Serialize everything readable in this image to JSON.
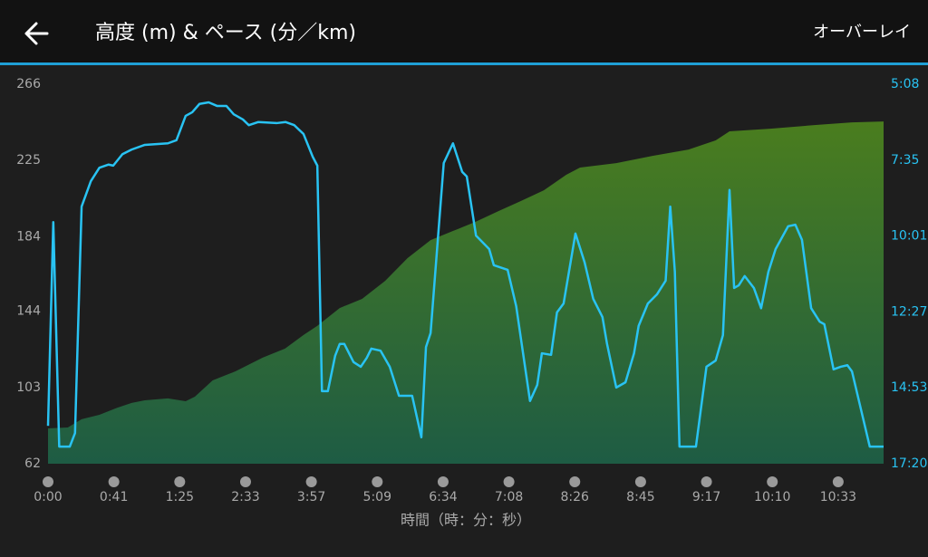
{
  "header": {
    "overlay_button": "オーバーレイ"
  },
  "chart_data": {
    "type": "combo",
    "title": "高度 (m) & ペース (分／km)",
    "xlabel": "時間（時：分：秒）",
    "xlim": [
      0,
      12.69
    ],
    "xticks": [
      {
        "value": 0,
        "label": "0:00"
      },
      {
        "value": 1,
        "label": "0:41"
      },
      {
        "value": 2,
        "label": "1:25"
      },
      {
        "value": 3,
        "label": "2:33"
      },
      {
        "value": 4,
        "label": "3:57"
      },
      {
        "value": 5,
        "label": "5:09"
      },
      {
        "value": 6,
        "label": "6:34"
      },
      {
        "value": 7,
        "label": "7:08"
      },
      {
        "value": 8,
        "label": "8:26"
      },
      {
        "value": 9,
        "label": "8:45"
      },
      {
        "value": 10,
        "label": "9:17"
      },
      {
        "value": 11,
        "label": "10:10"
      },
      {
        "value": 12,
        "label": "10:33"
      }
    ],
    "ylim": [
      62,
      266
    ],
    "yticks": [
      266,
      225,
      184,
      144,
      103,
      62
    ],
    "y2lim": [
      308,
      1040
    ],
    "y2_inverted": true,
    "y2ticks": [
      {
        "value": 308,
        "label": "5:08"
      },
      {
        "value": 455,
        "label": "7:35"
      },
      {
        "value": 601,
        "label": "10:01"
      },
      {
        "value": 747,
        "label": "12:27"
      },
      {
        "value": 893,
        "label": "14:53"
      },
      {
        "value": 1040,
        "label": "17:20"
      }
    ],
    "grid": false,
    "series": [
      {
        "type": "area",
        "color": "#4a7d1e",
        "color_bottom": "#1e5c44",
        "x": [
          0,
          0.3,
          0.51,
          0.78,
          1.06,
          1.27,
          1.47,
          1.82,
          2.09,
          2.23,
          2.5,
          2.85,
          3.26,
          3.6,
          3.88,
          4.09,
          4.43,
          4.77,
          5.12,
          5.46,
          5.81,
          6.15,
          6.49,
          6.84,
          7.18,
          7.53,
          7.87,
          8.08,
          8.63,
          9.18,
          9.73,
          10.14,
          10.35,
          10.97,
          11.66,
          12.21,
          12.69
        ],
        "values": [
          81.0,
          81.5,
          85.9,
          88.3,
          92.2,
          94.7,
          96.1,
          97.1,
          95.6,
          98.0,
          106.8,
          111.7,
          119.0,
          123.9,
          131.2,
          136.1,
          145.7,
          150.6,
          160.3,
          172.5,
          182.2,
          187.1,
          192.0,
          197.8,
          203.2,
          209.0,
          217.3,
          221.2,
          223.6,
          227.5,
          230.9,
          235.8,
          240.7,
          242.1,
          244.1,
          245.5,
          246.0
        ]
      },
      {
        "type": "line",
        "axis": "y2",
        "color": "#29c3f3",
        "x": [
          0,
          0.08,
          0.17,
          0.33,
          0.41,
          0.51,
          0.65,
          0.78,
          0.92,
          0.99,
          1.13,
          1.27,
          1.47,
          1.82,
          1.95,
          2.09,
          2.19,
          2.3,
          2.44,
          2.57,
          2.71,
          2.82,
          2.96,
          3.05,
          3.19,
          3.47,
          3.61,
          3.74,
          3.88,
          4.02,
          4.09,
          4.16,
          4.25,
          4.36,
          4.43,
          4.5,
          4.64,
          4.75,
          4.84,
          4.91,
          5.05,
          5.19,
          5.33,
          5.53,
          5.67,
          5.74,
          5.81,
          6.01,
          6.15,
          6.29,
          6.36,
          6.5,
          6.7,
          6.77,
          6.98,
          7.11,
          7.32,
          7.43,
          7.5,
          7.64,
          7.73,
          7.83,
          8.01,
          8.15,
          8.28,
          8.42,
          8.49,
          8.63,
          8.77,
          8.9,
          8.97,
          9.11,
          9.25,
          9.38,
          9.45,
          9.52,
          9.59,
          9.84,
          10.0,
          10.14,
          10.25,
          10.35,
          10.42,
          10.49,
          10.58,
          10.72,
          10.83,
          10.94,
          11.05,
          11.24,
          11.35,
          11.45,
          11.59,
          11.72,
          11.79,
          11.93,
          12.04,
          12.14,
          12.21,
          12.48,
          12.69
        ],
        "values": [
          967,
          574,
          1007,
          1007,
          981,
          544,
          495,
          469,
          463,
          465,
          443,
          434,
          425,
          422,
          416,
          369,
          362,
          346,
          343,
          350,
          350,
          366,
          376,
          387,
          381,
          383,
          381,
          387,
          404,
          448,
          465,
          900,
          900,
          832,
          809,
          809,
          844,
          853,
          836,
          818,
          822,
          853,
          909,
          909,
          989,
          815,
          788,
          460,
          422,
          477,
          486,
          600,
          626,
          657,
          666,
          736,
          919,
          888,
          827,
          830,
          748,
          731,
          596,
          652,
          722,
          757,
          809,
          893,
          883,
          827,
          774,
          731,
          713,
          687,
          544,
          670,
          1007,
          1007,
          853,
          841,
          792,
          512,
          701,
          696,
          678,
          701,
          740,
          670,
          626,
          582,
          579,
          608,
          740,
          766,
          771,
          858,
          853,
          850,
          862,
          1007,
          1007
        ]
      }
    ]
  }
}
